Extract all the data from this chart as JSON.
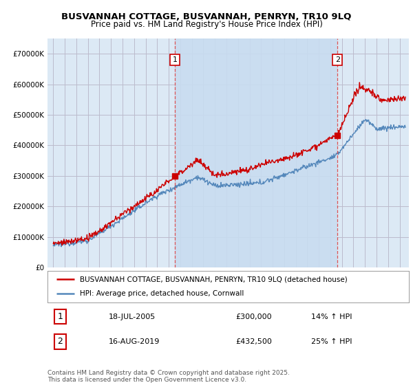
{
  "title": "BUSVANNAH COTTAGE, BUSVANNAH, PENRYN, TR10 9LQ",
  "subtitle": "Price paid vs. HM Land Registry's House Price Index (HPI)",
  "background_color": "#ffffff",
  "plot_bg_color": "#dce9f5",
  "grid_color": "#bbbbcc",
  "red_color": "#cc0000",
  "blue_color": "#5588bb",
  "vline_color": "#dd4444",
  "shade_color": "#c8dcf0",
  "legend_label_red": "BUSVANNAH COTTAGE, BUSVANNAH, PENRYN, TR10 9LQ (detached house)",
  "legend_label_blue": "HPI: Average price, detached house, Cornwall",
  "purchase1_date": "18-JUL-2005",
  "purchase1_price": "£300,000",
  "purchase1_hpi": "14% ↑ HPI",
  "purchase2_date": "16-AUG-2019",
  "purchase2_price": "£432,500",
  "purchase2_hpi": "25% ↑ HPI",
  "footer": "Contains HM Land Registry data © Crown copyright and database right 2025.\nThis data is licensed under the Open Government Licence v3.0.",
  "ylim": [
    0,
    750000
  ],
  "yticks": [
    0,
    100000,
    200000,
    300000,
    400000,
    500000,
    600000,
    700000
  ],
  "purchase1_x": 2005.54,
  "purchase1_y": 300000,
  "purchase2_x": 2019.62,
  "purchase2_y": 432500,
  "xmin": 1994.5,
  "xmax": 2025.8
}
